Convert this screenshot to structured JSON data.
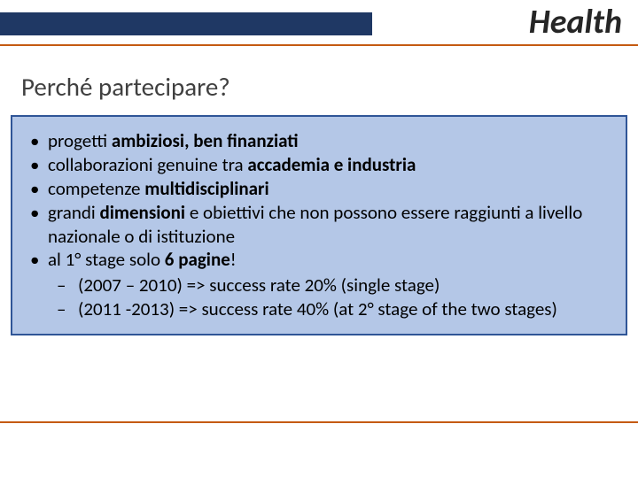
{
  "colors": {
    "header_bar": "#1f3864",
    "accent_line": "#c55a11",
    "box_fill": "#b4c7e7",
    "box_border": "#2f5597",
    "title_color": "#262626",
    "subtitle_color": "#404040",
    "text_color": "#000000",
    "background": "#ffffff"
  },
  "typography": {
    "title_fontsize": 38,
    "title_style": "bold italic",
    "subtitle_fontsize": 29,
    "body_fontsize": 21,
    "font_family": "Calibri"
  },
  "header": {
    "title": "Health"
  },
  "subtitle": "Perché partecipare?",
  "bullets": {
    "b1_a": "progetti ",
    "b1_b": "ambiziosi, ben finanziati",
    "b2_a": "collaborazioni genuine tra ",
    "b2_b": "accademia e industria",
    "b3_a": "competenze ",
    "b3_b": "multidisciplinari",
    "b4_a": "grandi ",
    "b4_b": "dimensioni",
    "b4_c": " e obiettivi che non possono essere raggiunti a livello nazionale o di istituzione",
    "b5_a": "al 1° stage solo ",
    "b5_b": "6 pagine",
    "b5_c": "!",
    "sub1": "(2007 – 2010) => success rate 20% (single stage)",
    "sub2": "(2011 -2013) => success rate 40% (at 2° stage of the two stages)"
  }
}
